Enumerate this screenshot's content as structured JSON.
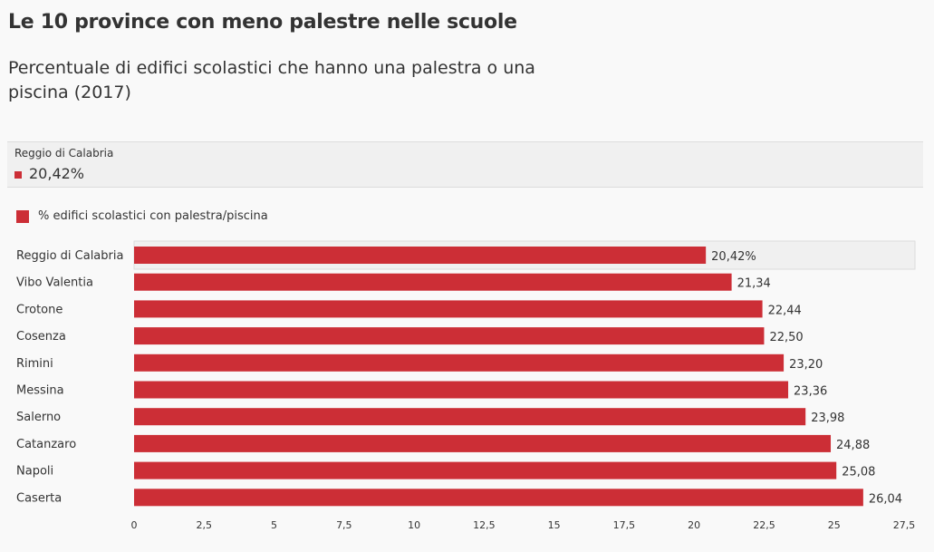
{
  "header": {
    "title": "Le 10 province con meno palestre nelle scuole",
    "subtitle": "Percentuale di edifici scolastici che hanno una palestra o una piscina (2017)"
  },
  "tooltip": {
    "label": "Reggio di Calabria",
    "value": "20,42%"
  },
  "colors": {
    "bar": "#cc2e36",
    "highlight_band": "#f0f0f0"
  },
  "chart_data": {
    "type": "bar",
    "orientation": "horizontal",
    "legend": {
      "entries": [
        "% edifici scolastici con palestra/piscina"
      ],
      "placement": "top-left"
    },
    "categories": [
      "Reggio di Calabria",
      "Vibo Valentia",
      "Crotone",
      "Cosenza",
      "Rimini",
      "Messina",
      "Salerno",
      "Catanzaro",
      "Napoli",
      "Caserta"
    ],
    "series": [
      {
        "name": "% edifici scolastici con palestra/piscina",
        "values": [
          20.42,
          21.34,
          22.44,
          22.5,
          23.2,
          23.36,
          23.98,
          24.88,
          25.08,
          26.04
        ],
        "value_labels": [
          "20,42%",
          "21,34",
          "22,44",
          "22,50",
          "23,20",
          "23,36",
          "23,98",
          "24,88",
          "25,08",
          "26,04"
        ]
      }
    ],
    "highlighted": "Reggio di Calabria",
    "xlim": [
      0,
      27.5
    ],
    "xticks": [
      0,
      2.5,
      5,
      7.5,
      10,
      12.5,
      15,
      17.5,
      20,
      22.5,
      25,
      27.5
    ],
    "xtick_labels": [
      "0",
      "2,5",
      "5",
      "7,5",
      "10",
      "12,5",
      "15",
      "17,5",
      "20",
      "22,5",
      "25",
      "27,5"
    ],
    "grid": false
  }
}
